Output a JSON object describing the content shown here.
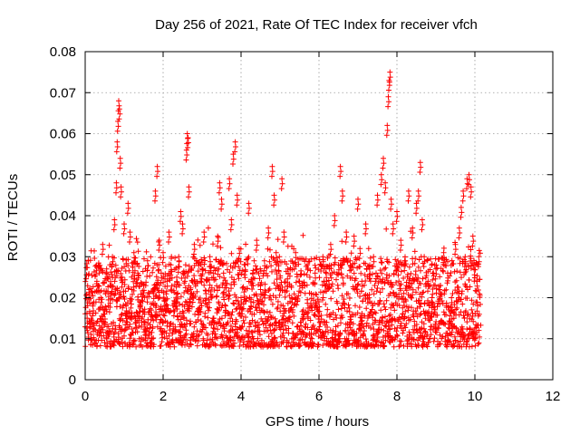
{
  "chart_data": {
    "type": "scatter",
    "title": "Day 256 of 2021, Rate Of TEC Index for receiver vfch",
    "xlabel": "GPS time / hours",
    "ylabel": "ROTI / TECUs",
    "xlim": [
      0,
      12
    ],
    "ylim": [
      0,
      0.08
    ],
    "x_ticks": [
      0,
      2,
      4,
      6,
      8,
      10,
      12
    ],
    "y_ticks": [
      0,
      0.01,
      0.02,
      0.03,
      0.04,
      0.05,
      0.06,
      0.07,
      0.08
    ],
    "x_tick_labels": [
      "0",
      "2",
      "4",
      "6",
      "8",
      "10",
      "12"
    ],
    "y_tick_labels": [
      "0",
      "0.01",
      "0.02",
      "0.03",
      "0.04",
      "0.05",
      "0.06",
      "0.07",
      "0.08"
    ],
    "grid": true,
    "marker": "+",
    "series": [
      {
        "name": "ROTI",
        "color": "#ff0000",
        "data_range": [
          0.0,
          10.15
        ],
        "typical_range": [
          0.008,
          0.03
        ],
        "points": [
          [
            0.05,
            0.015
          ],
          [
            0.1,
            0.022
          ],
          [
            0.15,
            0.011
          ],
          [
            0.2,
            0.018
          ],
          [
            0.3,
            0.024
          ],
          [
            0.35,
            0.012
          ],
          [
            0.4,
            0.02
          ],
          [
            0.45,
            0.033
          ],
          [
            0.5,
            0.016
          ],
          [
            0.55,
            0.027
          ],
          [
            0.6,
            0.013
          ],
          [
            0.65,
            0.021
          ],
          [
            0.7,
            0.03
          ],
          [
            0.75,
            0.039
          ],
          [
            0.8,
            0.048
          ],
          [
            0.82,
            0.058
          ],
          [
            0.84,
            0.063
          ],
          [
            0.86,
            0.068
          ],
          [
            0.88,
            0.066
          ],
          [
            0.9,
            0.054
          ],
          [
            0.92,
            0.047
          ],
          [
            0.95,
            0.025
          ],
          [
            1.0,
            0.038
          ],
          [
            1.05,
            0.018
          ],
          [
            1.1,
            0.043
          ],
          [
            1.15,
            0.036
          ],
          [
            1.2,
            0.022
          ],
          [
            1.25,
            0.031
          ],
          [
            1.3,
            0.014
          ],
          [
            1.35,
            0.026
          ],
          [
            1.4,
            0.019
          ],
          [
            1.5,
            0.023
          ],
          [
            1.55,
            0.012
          ],
          [
            1.6,
            0.029
          ],
          [
            1.7,
            0.017
          ],
          [
            1.75,
            0.021
          ],
          [
            1.8,
            0.046
          ],
          [
            1.85,
            0.052
          ],
          [
            1.9,
            0.034
          ],
          [
            1.95,
            0.026
          ],
          [
            2.0,
            0.031
          ],
          [
            2.05,
            0.018
          ],
          [
            2.1,
            0.024
          ],
          [
            2.15,
            0.036
          ],
          [
            2.2,
            0.028
          ],
          [
            2.3,
            0.019
          ],
          [
            2.35,
            0.025
          ],
          [
            2.4,
            0.03
          ],
          [
            2.45,
            0.041
          ],
          [
            2.5,
            0.038
          ],
          [
            2.55,
            0.026
          ],
          [
            2.6,
            0.056
          ],
          [
            2.62,
            0.06
          ],
          [
            2.64,
            0.059
          ],
          [
            2.66,
            0.047
          ],
          [
            2.7,
            0.022
          ],
          [
            2.8,
            0.033
          ],
          [
            2.9,
            0.017
          ],
          [
            3.0,
            0.027
          ],
          [
            3.05,
            0.036
          ],
          [
            3.1,
            0.021
          ],
          [
            3.2,
            0.03
          ],
          [
            3.3,
            0.015
          ],
          [
            3.4,
            0.035
          ],
          [
            3.45,
            0.048
          ],
          [
            3.5,
            0.044
          ],
          [
            3.55,
            0.026
          ],
          [
            3.6,
            0.018
          ],
          [
            3.7,
            0.049
          ],
          [
            3.75,
            0.039
          ],
          [
            3.8,
            0.055
          ],
          [
            3.85,
            0.058
          ],
          [
            3.9,
            0.045
          ],
          [
            3.95,
            0.032
          ],
          [
            4.0,
            0.02
          ],
          [
            4.1,
            0.028
          ],
          [
            4.2,
            0.043
          ],
          [
            4.25,
            0.019
          ],
          [
            4.3,
            0.026
          ],
          [
            4.4,
            0.034
          ],
          [
            4.5,
            0.022
          ],
          [
            4.6,
            0.029
          ],
          [
            4.7,
            0.037
          ],
          [
            4.8,
            0.052
          ],
          [
            4.85,
            0.045
          ],
          [
            4.9,
            0.031
          ],
          [
            5.0,
            0.023
          ],
          [
            5.05,
            0.049
          ],
          [
            5.1,
            0.036
          ],
          [
            5.2,
            0.027
          ],
          [
            5.3,
            0.02
          ],
          [
            5.4,
            0.031
          ],
          [
            5.5,
            0.024
          ],
          [
            5.6,
            0.017
          ],
          [
            5.7,
            0.028
          ],
          [
            5.8,
            0.021
          ],
          [
            5.9,
            0.026
          ],
          [
            6.0,
            0.019
          ],
          [
            6.1,
            0.03
          ],
          [
            6.2,
            0.024
          ],
          [
            6.3,
            0.033
          ],
          [
            6.4,
            0.04
          ],
          [
            6.5,
            0.028
          ],
          [
            6.55,
            0.052
          ],
          [
            6.6,
            0.046
          ],
          [
            6.7,
            0.036
          ],
          [
            6.8,
            0.029
          ],
          [
            6.9,
            0.035
          ],
          [
            7.0,
            0.044
          ],
          [
            7.05,
            0.032
          ],
          [
            7.1,
            0.024
          ],
          [
            7.2,
            0.038
          ],
          [
            7.3,
            0.027
          ],
          [
            7.4,
            0.03
          ],
          [
            7.5,
            0.045
          ],
          [
            7.6,
            0.05
          ],
          [
            7.65,
            0.054
          ],
          [
            7.7,
            0.048
          ],
          [
            7.75,
            0.062
          ],
          [
            7.78,
            0.069
          ],
          [
            7.8,
            0.073
          ],
          [
            7.82,
            0.075
          ],
          [
            7.85,
            0.044
          ],
          [
            7.9,
            0.038
          ],
          [
            8.0,
            0.041
          ],
          [
            8.1,
            0.034
          ],
          [
            8.2,
            0.029
          ],
          [
            8.3,
            0.046
          ],
          [
            8.4,
            0.037
          ],
          [
            8.5,
            0.043
          ],
          [
            8.55,
            0.046
          ],
          [
            8.6,
            0.053
          ],
          [
            8.65,
            0.039
          ],
          [
            8.7,
            0.03
          ],
          [
            8.8,
            0.024
          ],
          [
            8.9,
            0.02
          ],
          [
            9.0,
            0.027
          ],
          [
            9.1,
            0.022
          ],
          [
            9.2,
            0.031
          ],
          [
            9.3,
            0.026
          ],
          [
            9.4,
            0.02
          ],
          [
            9.5,
            0.033
          ],
          [
            9.6,
            0.037
          ],
          [
            9.65,
            0.042
          ],
          [
            9.7,
            0.046
          ],
          [
            9.75,
            0.03
          ],
          [
            9.8,
            0.049
          ],
          [
            9.85,
            0.05
          ],
          [
            9.9,
            0.047
          ],
          [
            9.95,
            0.035
          ],
          [
            10.0,
            0.028
          ],
          [
            10.05,
            0.024
          ],
          [
            10.1,
            0.03
          ]
        ]
      }
    ]
  }
}
